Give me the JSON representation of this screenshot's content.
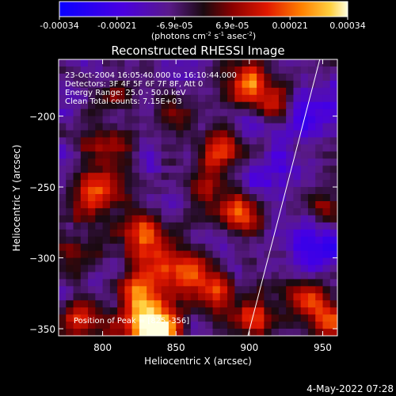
{
  "chart_data": {
    "type": "heatmap",
    "title": "Reconstructed RHESSI Image",
    "xlabel": "Heliocentric X (arcsec)",
    "ylabel": "Heliocentric Y (arcsec)",
    "xlim": [
      770,
      960
    ],
    "ylim": [
      -355,
      -160
    ],
    "x_ticks": [
      800,
      850,
      900,
      950
    ],
    "y_ticks": [
      -200,
      -250,
      -300,
      -350
    ],
    "colorbar": {
      "ticks": [
        "-0.00034",
        "-0.00021",
        "-6.9e-05",
        "6.9e-05",
        "0.00021",
        "0.00034"
      ],
      "range": [
        -0.00034,
        0.00034
      ],
      "units_prefix": "(photons cm",
      "units_exp1": "-2",
      "units_mid": " s",
      "units_exp2": "-1",
      "units_mid2": " asec",
      "units_exp3": "-2",
      "units_suffix": ")"
    },
    "info_lines": [
      "23-Oct-2004 16:05:40.000 to 16:10:44.000",
      "Detectors: 3F 4F 5F 6F 7F 8F, Att 0",
      "Energy Range: 25.0 - 50.0 keV",
      "Clean     Total counts: 7.15E+03"
    ],
    "peak_label": "Position of Peak = [825,-356]",
    "limb_line": [
      [
        899,
        -355
      ],
      [
        948,
        -160
      ]
    ],
    "pixel_grid": {
      "cols": 38,
      "rows": 39
    },
    "hot_spots": [
      {
        "x": 828,
        "y": -343,
        "amp": 0.00034,
        "sigma": 12
      },
      {
        "x": 842,
        "y": -352,
        "amp": 0.0003,
        "sigma": 10
      },
      {
        "x": 785,
        "y": -342,
        "amp": 0.00026,
        "sigma": 9
      },
      {
        "x": 795,
        "y": -255,
        "amp": 0.00026,
        "sigma": 12
      },
      {
        "x": 803,
        "y": -222,
        "amp": 0.00022,
        "sigma": 9
      },
      {
        "x": 828,
        "y": -283,
        "amp": 0.00026,
        "sigma": 10
      },
      {
        "x": 840,
        "y": -310,
        "amp": 0.0002,
        "sigma": 12
      },
      {
        "x": 862,
        "y": -312,
        "amp": 0.00026,
        "sigma": 10
      },
      {
        "x": 878,
        "y": -325,
        "amp": 0.00022,
        "sigma": 9
      },
      {
        "x": 880,
        "y": -222,
        "amp": 0.00024,
        "sigma": 10
      },
      {
        "x": 893,
        "y": -268,
        "amp": 0.00022,
        "sigma": 10
      },
      {
        "x": 900,
        "y": -176,
        "amp": 0.00028,
        "sigma": 10
      },
      {
        "x": 918,
        "y": -190,
        "amp": 0.00018,
        "sigma": 7
      },
      {
        "x": 850,
        "y": -200,
        "amp": 0.00016,
        "sigma": 9
      },
      {
        "x": 812,
        "y": -185,
        "amp": 0.00016,
        "sigma": 8
      },
      {
        "x": 902,
        "y": -342,
        "amp": 0.00024,
        "sigma": 10
      },
      {
        "x": 940,
        "y": -330,
        "amp": 0.00022,
        "sigma": 11
      },
      {
        "x": 955,
        "y": -345,
        "amp": 0.00024,
        "sigma": 8
      },
      {
        "x": 952,
        "y": -268,
        "amp": 0.00016,
        "sigma": 8
      },
      {
        "x": 868,
        "y": -248,
        "amp": 0.00016,
        "sigma": 9
      },
      {
        "x": 822,
        "y": -322,
        "amp": 0.00018,
        "sigma": 8
      },
      {
        "x": 778,
        "y": -300,
        "amp": 0.00016,
        "sigma": 8
      },
      {
        "x": 945,
        "y": -200,
        "amp": -0.00016,
        "sigma": 12
      },
      {
        "x": 950,
        "y": -292,
        "amp": -0.0002,
        "sigma": 12
      },
      {
        "x": 915,
        "y": -240,
        "amp": -0.00012,
        "sigma": 12
      }
    ]
  },
  "timestamp": "4-May-2022 07:28"
}
